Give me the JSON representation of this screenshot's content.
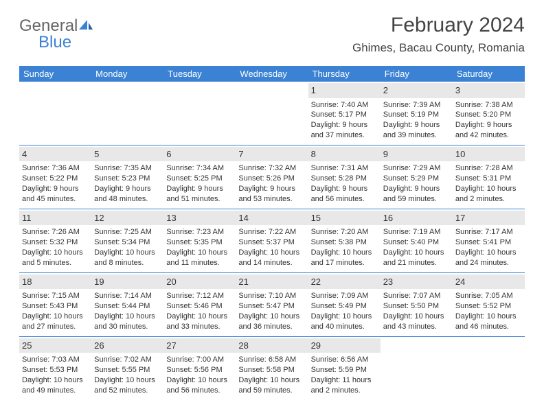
{
  "brand": {
    "part1": "General",
    "part2": "Blue"
  },
  "title": "February 2024",
  "location": "Ghimes, Bacau County, Romania",
  "colors": {
    "header_bg": "#3b82d4",
    "header_text": "#ffffff",
    "daynum_bg": "#e8e8e8",
    "border": "#3b82d4",
    "text": "#333333",
    "brand_gray": "#666666"
  },
  "headers": [
    "Sunday",
    "Monday",
    "Tuesday",
    "Wednesday",
    "Thursday",
    "Friday",
    "Saturday"
  ],
  "weeks": [
    [
      {
        "day": "",
        "sunrise": "",
        "sunset": "",
        "daylight": ""
      },
      {
        "day": "",
        "sunrise": "",
        "sunset": "",
        "daylight": ""
      },
      {
        "day": "",
        "sunrise": "",
        "sunset": "",
        "daylight": ""
      },
      {
        "day": "",
        "sunrise": "",
        "sunset": "",
        "daylight": ""
      },
      {
        "day": "1",
        "sunrise": "Sunrise: 7:40 AM",
        "sunset": "Sunset: 5:17 PM",
        "daylight": "Daylight: 9 hours and 37 minutes."
      },
      {
        "day": "2",
        "sunrise": "Sunrise: 7:39 AM",
        "sunset": "Sunset: 5:19 PM",
        "daylight": "Daylight: 9 hours and 39 minutes."
      },
      {
        "day": "3",
        "sunrise": "Sunrise: 7:38 AM",
        "sunset": "Sunset: 5:20 PM",
        "daylight": "Daylight: 9 hours and 42 minutes."
      }
    ],
    [
      {
        "day": "4",
        "sunrise": "Sunrise: 7:36 AM",
        "sunset": "Sunset: 5:22 PM",
        "daylight": "Daylight: 9 hours and 45 minutes."
      },
      {
        "day": "5",
        "sunrise": "Sunrise: 7:35 AM",
        "sunset": "Sunset: 5:23 PM",
        "daylight": "Daylight: 9 hours and 48 minutes."
      },
      {
        "day": "6",
        "sunrise": "Sunrise: 7:34 AM",
        "sunset": "Sunset: 5:25 PM",
        "daylight": "Daylight: 9 hours and 51 minutes."
      },
      {
        "day": "7",
        "sunrise": "Sunrise: 7:32 AM",
        "sunset": "Sunset: 5:26 PM",
        "daylight": "Daylight: 9 hours and 53 minutes."
      },
      {
        "day": "8",
        "sunrise": "Sunrise: 7:31 AM",
        "sunset": "Sunset: 5:28 PM",
        "daylight": "Daylight: 9 hours and 56 minutes."
      },
      {
        "day": "9",
        "sunrise": "Sunrise: 7:29 AM",
        "sunset": "Sunset: 5:29 PM",
        "daylight": "Daylight: 9 hours and 59 minutes."
      },
      {
        "day": "10",
        "sunrise": "Sunrise: 7:28 AM",
        "sunset": "Sunset: 5:31 PM",
        "daylight": "Daylight: 10 hours and 2 minutes."
      }
    ],
    [
      {
        "day": "11",
        "sunrise": "Sunrise: 7:26 AM",
        "sunset": "Sunset: 5:32 PM",
        "daylight": "Daylight: 10 hours and 5 minutes."
      },
      {
        "day": "12",
        "sunrise": "Sunrise: 7:25 AM",
        "sunset": "Sunset: 5:34 PM",
        "daylight": "Daylight: 10 hours and 8 minutes."
      },
      {
        "day": "13",
        "sunrise": "Sunrise: 7:23 AM",
        "sunset": "Sunset: 5:35 PM",
        "daylight": "Daylight: 10 hours and 11 minutes."
      },
      {
        "day": "14",
        "sunrise": "Sunrise: 7:22 AM",
        "sunset": "Sunset: 5:37 PM",
        "daylight": "Daylight: 10 hours and 14 minutes."
      },
      {
        "day": "15",
        "sunrise": "Sunrise: 7:20 AM",
        "sunset": "Sunset: 5:38 PM",
        "daylight": "Daylight: 10 hours and 17 minutes."
      },
      {
        "day": "16",
        "sunrise": "Sunrise: 7:19 AM",
        "sunset": "Sunset: 5:40 PM",
        "daylight": "Daylight: 10 hours and 21 minutes."
      },
      {
        "day": "17",
        "sunrise": "Sunrise: 7:17 AM",
        "sunset": "Sunset: 5:41 PM",
        "daylight": "Daylight: 10 hours and 24 minutes."
      }
    ],
    [
      {
        "day": "18",
        "sunrise": "Sunrise: 7:15 AM",
        "sunset": "Sunset: 5:43 PM",
        "daylight": "Daylight: 10 hours and 27 minutes."
      },
      {
        "day": "19",
        "sunrise": "Sunrise: 7:14 AM",
        "sunset": "Sunset: 5:44 PM",
        "daylight": "Daylight: 10 hours and 30 minutes."
      },
      {
        "day": "20",
        "sunrise": "Sunrise: 7:12 AM",
        "sunset": "Sunset: 5:46 PM",
        "daylight": "Daylight: 10 hours and 33 minutes."
      },
      {
        "day": "21",
        "sunrise": "Sunrise: 7:10 AM",
        "sunset": "Sunset: 5:47 PM",
        "daylight": "Daylight: 10 hours and 36 minutes."
      },
      {
        "day": "22",
        "sunrise": "Sunrise: 7:09 AM",
        "sunset": "Sunset: 5:49 PM",
        "daylight": "Daylight: 10 hours and 40 minutes."
      },
      {
        "day": "23",
        "sunrise": "Sunrise: 7:07 AM",
        "sunset": "Sunset: 5:50 PM",
        "daylight": "Daylight: 10 hours and 43 minutes."
      },
      {
        "day": "24",
        "sunrise": "Sunrise: 7:05 AM",
        "sunset": "Sunset: 5:52 PM",
        "daylight": "Daylight: 10 hours and 46 minutes."
      }
    ],
    [
      {
        "day": "25",
        "sunrise": "Sunrise: 7:03 AM",
        "sunset": "Sunset: 5:53 PM",
        "daylight": "Daylight: 10 hours and 49 minutes."
      },
      {
        "day": "26",
        "sunrise": "Sunrise: 7:02 AM",
        "sunset": "Sunset: 5:55 PM",
        "daylight": "Daylight: 10 hours and 52 minutes."
      },
      {
        "day": "27",
        "sunrise": "Sunrise: 7:00 AM",
        "sunset": "Sunset: 5:56 PM",
        "daylight": "Daylight: 10 hours and 56 minutes."
      },
      {
        "day": "28",
        "sunrise": "Sunrise: 6:58 AM",
        "sunset": "Sunset: 5:58 PM",
        "daylight": "Daylight: 10 hours and 59 minutes."
      },
      {
        "day": "29",
        "sunrise": "Sunrise: 6:56 AM",
        "sunset": "Sunset: 5:59 PM",
        "daylight": "Daylight: 11 hours and 2 minutes."
      },
      {
        "day": "",
        "sunrise": "",
        "sunset": "",
        "daylight": ""
      },
      {
        "day": "",
        "sunrise": "",
        "sunset": "",
        "daylight": ""
      }
    ]
  ]
}
